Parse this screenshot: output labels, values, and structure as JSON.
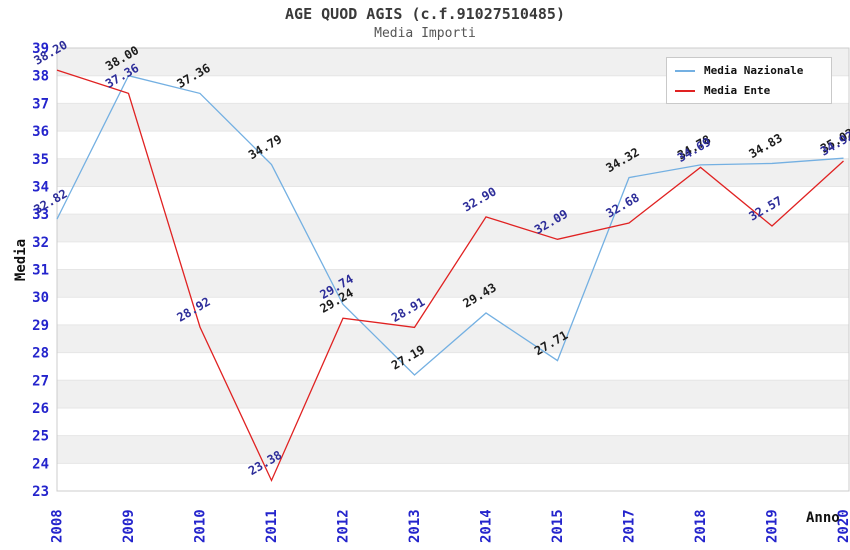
{
  "chart_data": {
    "type": "line",
    "title": "AGE QUOD AGIS (c.f.91027510485)",
    "subtitle": "Media Importi",
    "xlabel": "Anno",
    "ylabel": "Media",
    "categories": [
      "2008",
      "2009",
      "2010",
      "2011",
      "2012",
      "2013",
      "2014",
      "2015",
      "2017",
      "2018",
      "2019",
      "2020"
    ],
    "ylim": [
      23,
      39
    ],
    "ytick_step": 1,
    "grid": "horizontal-bands-alternating",
    "legend_position": "top-right-inside",
    "series": [
      {
        "name": "Media Nazionale",
        "color": "#74b0e2",
        "values": [
          32.82,
          38.0,
          37.36,
          34.79,
          29.74,
          27.19,
          29.43,
          27.71,
          34.32,
          34.78,
          34.83,
          35.02
        ],
        "label_colors": [
          "navy",
          "black",
          "black",
          "black",
          "navy",
          "black",
          "black",
          "black",
          "black",
          "black",
          "black",
          "black"
        ]
      },
      {
        "name": "Media Ente",
        "color": "#e02222",
        "values": [
          38.2,
          37.36,
          28.92,
          23.38,
          29.24,
          28.91,
          32.9,
          32.09,
          32.68,
          34.69,
          32.57,
          34.92
        ],
        "label_colors": [
          "navy",
          "navy",
          "navy",
          "navy",
          "black",
          "navy",
          "navy",
          "navy",
          "navy",
          "navy",
          "navy",
          "navy"
        ]
      }
    ],
    "colors": {
      "tick_label": "#2424cc",
      "data_label_navy": "#2d2d99",
      "data_label_black": "#1c1c1c",
      "band": "#f0f0f0",
      "gridline": "#e6e6e6",
      "plot_border": "#cccccc",
      "title": "#3a3a3a",
      "subtitle": "#555555",
      "axis_label": "#111111",
      "background": "#ffffff"
    }
  }
}
